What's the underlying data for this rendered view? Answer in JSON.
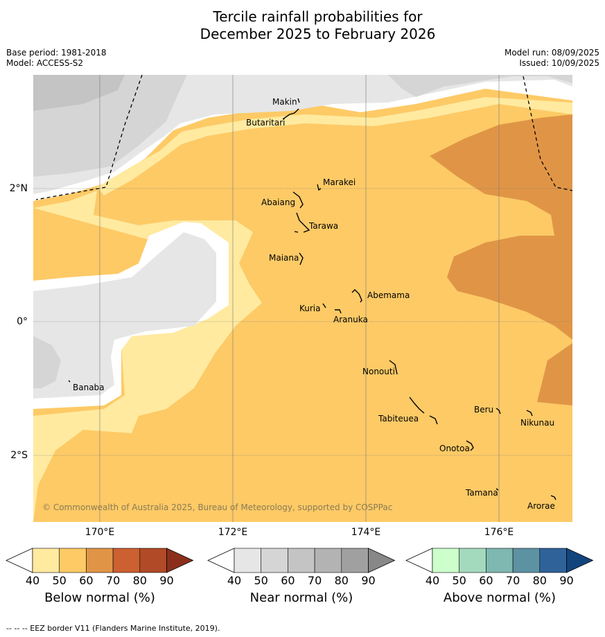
{
  "title": {
    "line1": "Tercile rainfall probabilities for",
    "line2": "December 2025 to February 2026"
  },
  "meta": {
    "base_period": "Base period: 1981-2018",
    "model": "Model: ACCESS-S2",
    "model_run": "Model run: 08/09/2025",
    "issued": "Issued: 10/09/2025"
  },
  "axes": {
    "lat_labels": [
      "2°N",
      "0°",
      "2°S"
    ],
    "lon_labels": [
      "170°E",
      "172°E",
      "174°E",
      "176°E"
    ]
  },
  "places": {
    "makin": "Makin",
    "butaritari": "Butaritari",
    "marakei": "Marakei",
    "abaiang": "Abaiang",
    "tarawa": "Tarawa",
    "maiana": "Maiana",
    "abemama": "Abemama",
    "kuria": "Kuria",
    "aranuka": "Aranuka",
    "nonouti": "Nonouti",
    "banaba": "Banaba",
    "tabiteuea": "Tabiteuea",
    "beru": "Beru",
    "nikunau": "Nikunau",
    "onotoa": "Onotoa",
    "tamana": "Tamana",
    "arorae": "Arorae"
  },
  "copyright": "© Commonwealth of Australia 2025, Bureau of Meteorology, supported by COSPPac",
  "legends": {
    "ticks": [
      "40",
      "50",
      "60",
      "70",
      "80",
      "90"
    ],
    "below": {
      "title": "Below normal (%)",
      "colors": [
        "#ffffff",
        "#ffeaa0",
        "#fdca66",
        "#e09546",
        "#cc6030",
        "#b04a27",
        "#8b2f1c"
      ]
    },
    "near": {
      "title": "Near normal (%)",
      "colors": [
        "#ffffff",
        "#e6e6e6",
        "#d5d5d5",
        "#c4c4c4",
        "#b3b3b3",
        "#a0a0a0",
        "#888888"
      ]
    },
    "above": {
      "title": "Above normal (%)",
      "colors": [
        "#ffffff",
        "#ccffcc",
        "#a3d9bd",
        "#7fb8b0",
        "#5d92a2",
        "#2f6299",
        "#12457d"
      ]
    }
  },
  "footer": "--  --  -- EEZ border V11 (Flanders Marine Institute, 2019)."
}
